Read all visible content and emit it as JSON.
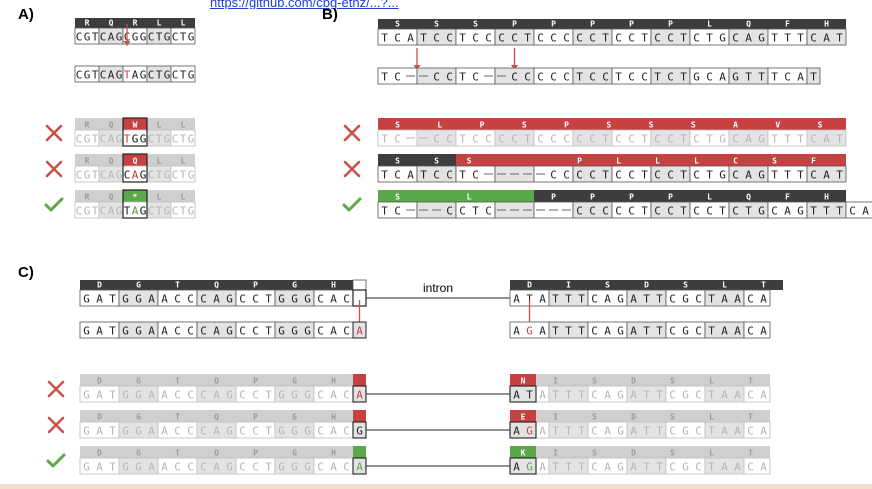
{
  "panels": {
    "a": "A)",
    "b": "B)",
    "c": "C)"
  },
  "link_text": "https://github.com/cbg-ethz/...?...",
  "intron_label": "intron",
  "colors": {
    "header_dark": "#3d3d3d",
    "header_light": "#cfcfcf",
    "cell_grey": "#e3e3e3",
    "red": "#c64242",
    "green": "#5aa84a",
    "arrow": "#d24a4a",
    "cross": "#c8524a",
    "check": "#5aa84a"
  },
  "panel_a": {
    "ref_aa": [
      "R",
      "Q",
      "R",
      "L",
      "L"
    ],
    "ref_seq": "CGTCAGCGGCTGCTG",
    "read_seq": "CGTCAGTAGCTGCTG",
    "variants": [
      {
        "status": "cross",
        "aa": [
          "R",
          "Q",
          "W",
          "L",
          "L"
        ],
        "seq": "CGTCAGTGGCTGCTG"
      },
      {
        "status": "cross",
        "aa": [
          "R",
          "Q",
          "Q",
          "L",
          "L"
        ],
        "seq": "CGTCAGCAGCTGCTG"
      },
      {
        "status": "check",
        "aa": [
          "R",
          "Q",
          "*",
          "L",
          "L"
        ],
        "seq": "CGTCAGTAGCTGCTG"
      }
    ]
  },
  "panel_b": {
    "ref_aa": [
      "S",
      "S",
      "S",
      "P",
      "P",
      "P",
      "P",
      "P",
      "L",
      "Q",
      "F",
      "H"
    ],
    "ref_seq": "TCATCCTCCCCTCCCCCTCCTCCTCTGCAGTTTCAT",
    "read_seq": "TC--CCTC--CCCCCTCCTCCTCTGCAGTTTCAT",
    "variants": [
      {
        "status": "cross",
        "aa": [
          "S",
          "L",
          "P",
          "S",
          "P",
          "S",
          "S",
          "S",
          "A",
          "V",
          "S"
        ],
        "seq": "TC--CCTCCCCTCCCCCTCCTCCTCTGCAGTTTCAT"
      },
      {
        "status": "cross",
        "aa": [
          "S",
          "S",
          "S",
          "P",
          "L",
          "L",
          "L",
          "C",
          "S",
          "F"
        ],
        "seq": "TCATCCTC-----CCCCTCCTCCTCTGCAGTTTCAT"
      },
      {
        "status": "check",
        "aa": [
          "S",
          "L",
          "P",
          "P",
          "P",
          "P",
          "L",
          "Q",
          "F",
          "H"
        ],
        "seq": "TC---CCTC------CCCCCTCCTCCTCTGCAGTTTCAT"
      }
    ]
  },
  "panel_c": {
    "left_aa": [
      "D",
      "G",
      "T",
      "Q",
      "P",
      "G",
      "H"
    ],
    "left_seq": "GATGGAACCCAGCCTGGGCACG",
    "right_aa": [
      "D",
      "I",
      "S",
      "D",
      "S",
      "L",
      "T"
    ],
    "right_seq": "ATATTTCAGATTCGCTAACA",
    "read_left": "GATGGAACCCAGCCTGGGCACA",
    "read_right": "AGATTTCAGATTCGCTAACA",
    "variants": [
      {
        "status": "cross",
        "end_base": "A",
        "aa_right": "N",
        "right_start": "AT"
      },
      {
        "status": "cross",
        "end_base": "G",
        "aa_right": "E",
        "right_start": "AG"
      },
      {
        "status": "check",
        "end_base": "A",
        "aa_right": "K",
        "right_start": "AG"
      }
    ]
  }
}
